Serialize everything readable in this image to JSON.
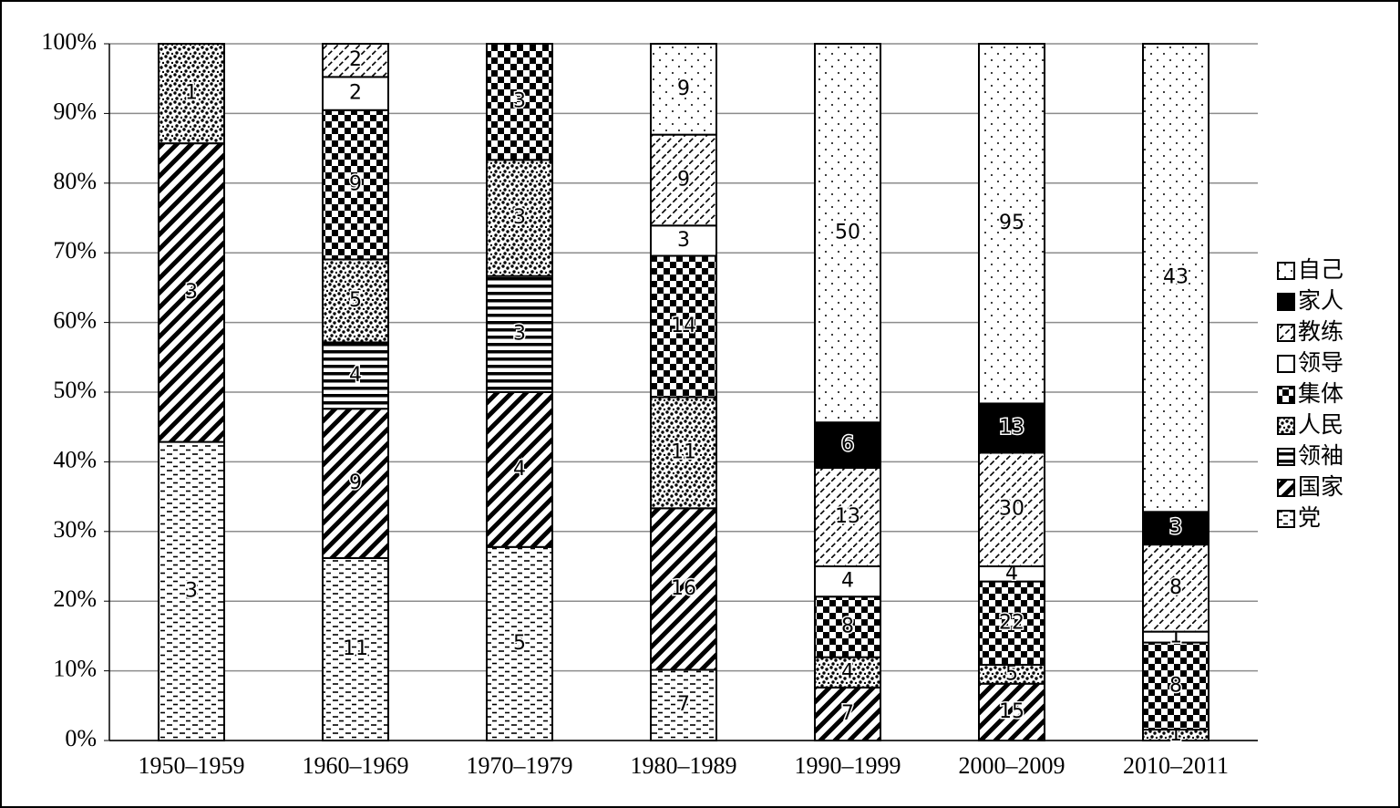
{
  "chart_data": {
    "type": "bar",
    "stacked": "percent",
    "categories": [
      "1950–1959",
      "1960–1969",
      "1970–1979",
      "1980–1989",
      "1990–1999",
      "2000–2009",
      "2010–2011"
    ],
    "series": [
      {
        "name": "党",
        "color": "#000000",
        "pattern": "dashes",
        "values": [
          3,
          11,
          5,
          7,
          null,
          null,
          null
        ]
      },
      {
        "name": "国家",
        "color": "#000000",
        "pattern": "hatch-bold",
        "values": [
          3,
          9,
          4,
          16,
          7,
          15,
          null
        ]
      },
      {
        "name": "领袖",
        "color": "#000000",
        "pattern": "hstripes",
        "values": [
          null,
          4,
          3,
          null,
          null,
          null,
          null
        ]
      },
      {
        "name": "人民",
        "color": "#000000",
        "pattern": "dense-dots",
        "values": [
          1,
          5,
          3,
          11,
          4,
          5,
          1
        ]
      },
      {
        "name": "集体",
        "color": "#000000",
        "pattern": "checker",
        "values": [
          null,
          9,
          3,
          14,
          8,
          22,
          8
        ]
      },
      {
        "name": "领导",
        "color": "#ffffff",
        "pattern": "plain",
        "values": [
          null,
          2,
          null,
          3,
          4,
          4,
          1
        ]
      },
      {
        "name": "教练",
        "color": "#000000",
        "pattern": "hatch-light",
        "values": [
          null,
          2,
          null,
          9,
          13,
          30,
          8
        ]
      },
      {
        "name": "家人",
        "color": "#000000",
        "pattern": "solid",
        "values": [
          null,
          null,
          null,
          null,
          6,
          13,
          3
        ]
      },
      {
        "name": "自己",
        "color": "#000000",
        "pattern": "sparse-dots",
        "values": [
          null,
          null,
          null,
          9,
          50,
          95,
          43
        ]
      }
    ],
    "ylim": [
      0,
      100
    ],
    "yticks": [
      {
        "value": 0,
        "label": "0%"
      },
      {
        "value": 10,
        "label": "10%"
      },
      {
        "value": 20,
        "label": "20%"
      },
      {
        "value": 30,
        "label": "30%"
      },
      {
        "value": 40,
        "label": "40%"
      },
      {
        "value": 50,
        "label": "50%"
      },
      {
        "value": 60,
        "label": "60%"
      },
      {
        "value": 70,
        "label": "70%"
      },
      {
        "value": 80,
        "label": "80%"
      },
      {
        "value": 90,
        "label": "90%"
      },
      {
        "value": 100,
        "label": "100%"
      }
    ],
    "grid": true,
    "legend": "right"
  }
}
